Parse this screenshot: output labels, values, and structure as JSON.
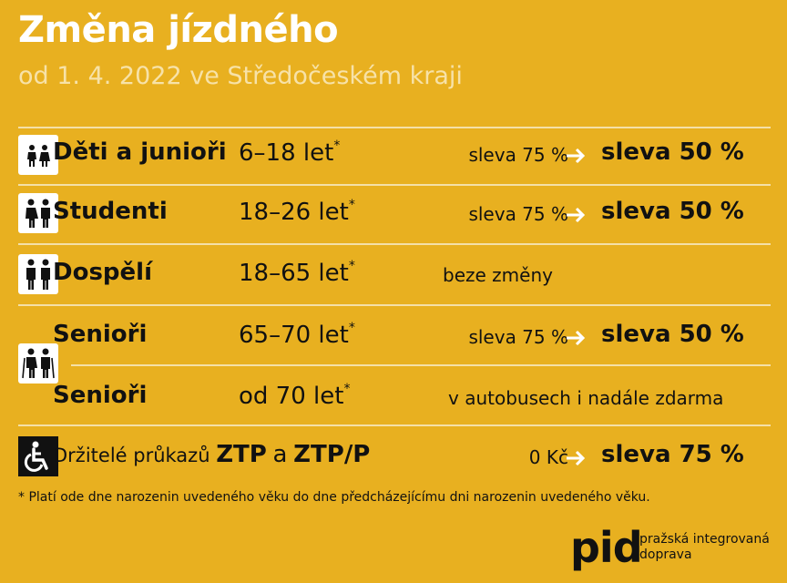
{
  "header": {
    "title": "Změna jízdného",
    "subtitle": "od 1. 4. 2022 ve Středočeském kraji"
  },
  "rows": [
    {
      "icon": "children-icon",
      "category": "Děti a junioři",
      "age": "6–18 let",
      "age_mark": "*",
      "old": "sleva 75 %",
      "new": "sleva 50 %"
    },
    {
      "icon": "students-icon",
      "category": "Studenti",
      "age": "18–26 let",
      "age_mark": "*",
      "old": "sleva 75 %",
      "new": "sleva 50 %"
    },
    {
      "icon": "adults-icon",
      "category": "Dospělí",
      "age": "18–65 let",
      "age_mark": "*",
      "note": "beze změny"
    },
    {
      "icon": "seniors-icon",
      "category": "Senioři",
      "age": "65–70 let",
      "age_mark": "*",
      "old": "sleva 75 %",
      "new": "sleva 50 %"
    },
    {
      "category": "Senioři",
      "age": "od 70 let",
      "age_mark": "*",
      "note": "v autobusech i nadále zdarma"
    },
    {
      "icon": "wheelchair-icon",
      "category_prefix": "Držitelé průkazů",
      "ztp": "ZTP",
      "and": "a",
      "ztpp": "ZTP/P",
      "old": "0 Kč",
      "new": "sleva 75 %"
    }
  ],
  "footnote": "*  Platí ode dne narozenin uvedeného věku do dne předcházejícímu dni narozenin uvedeného věku.",
  "logo": {
    "mark": "pid",
    "line1": "pražská integrovaná",
    "line2": "doprava"
  },
  "colors": {
    "background": "#e8b020",
    "title": "#ffffff",
    "subtitle": "#f7e2a8",
    "divider": "#f4e0a8",
    "text": "#111111"
  }
}
